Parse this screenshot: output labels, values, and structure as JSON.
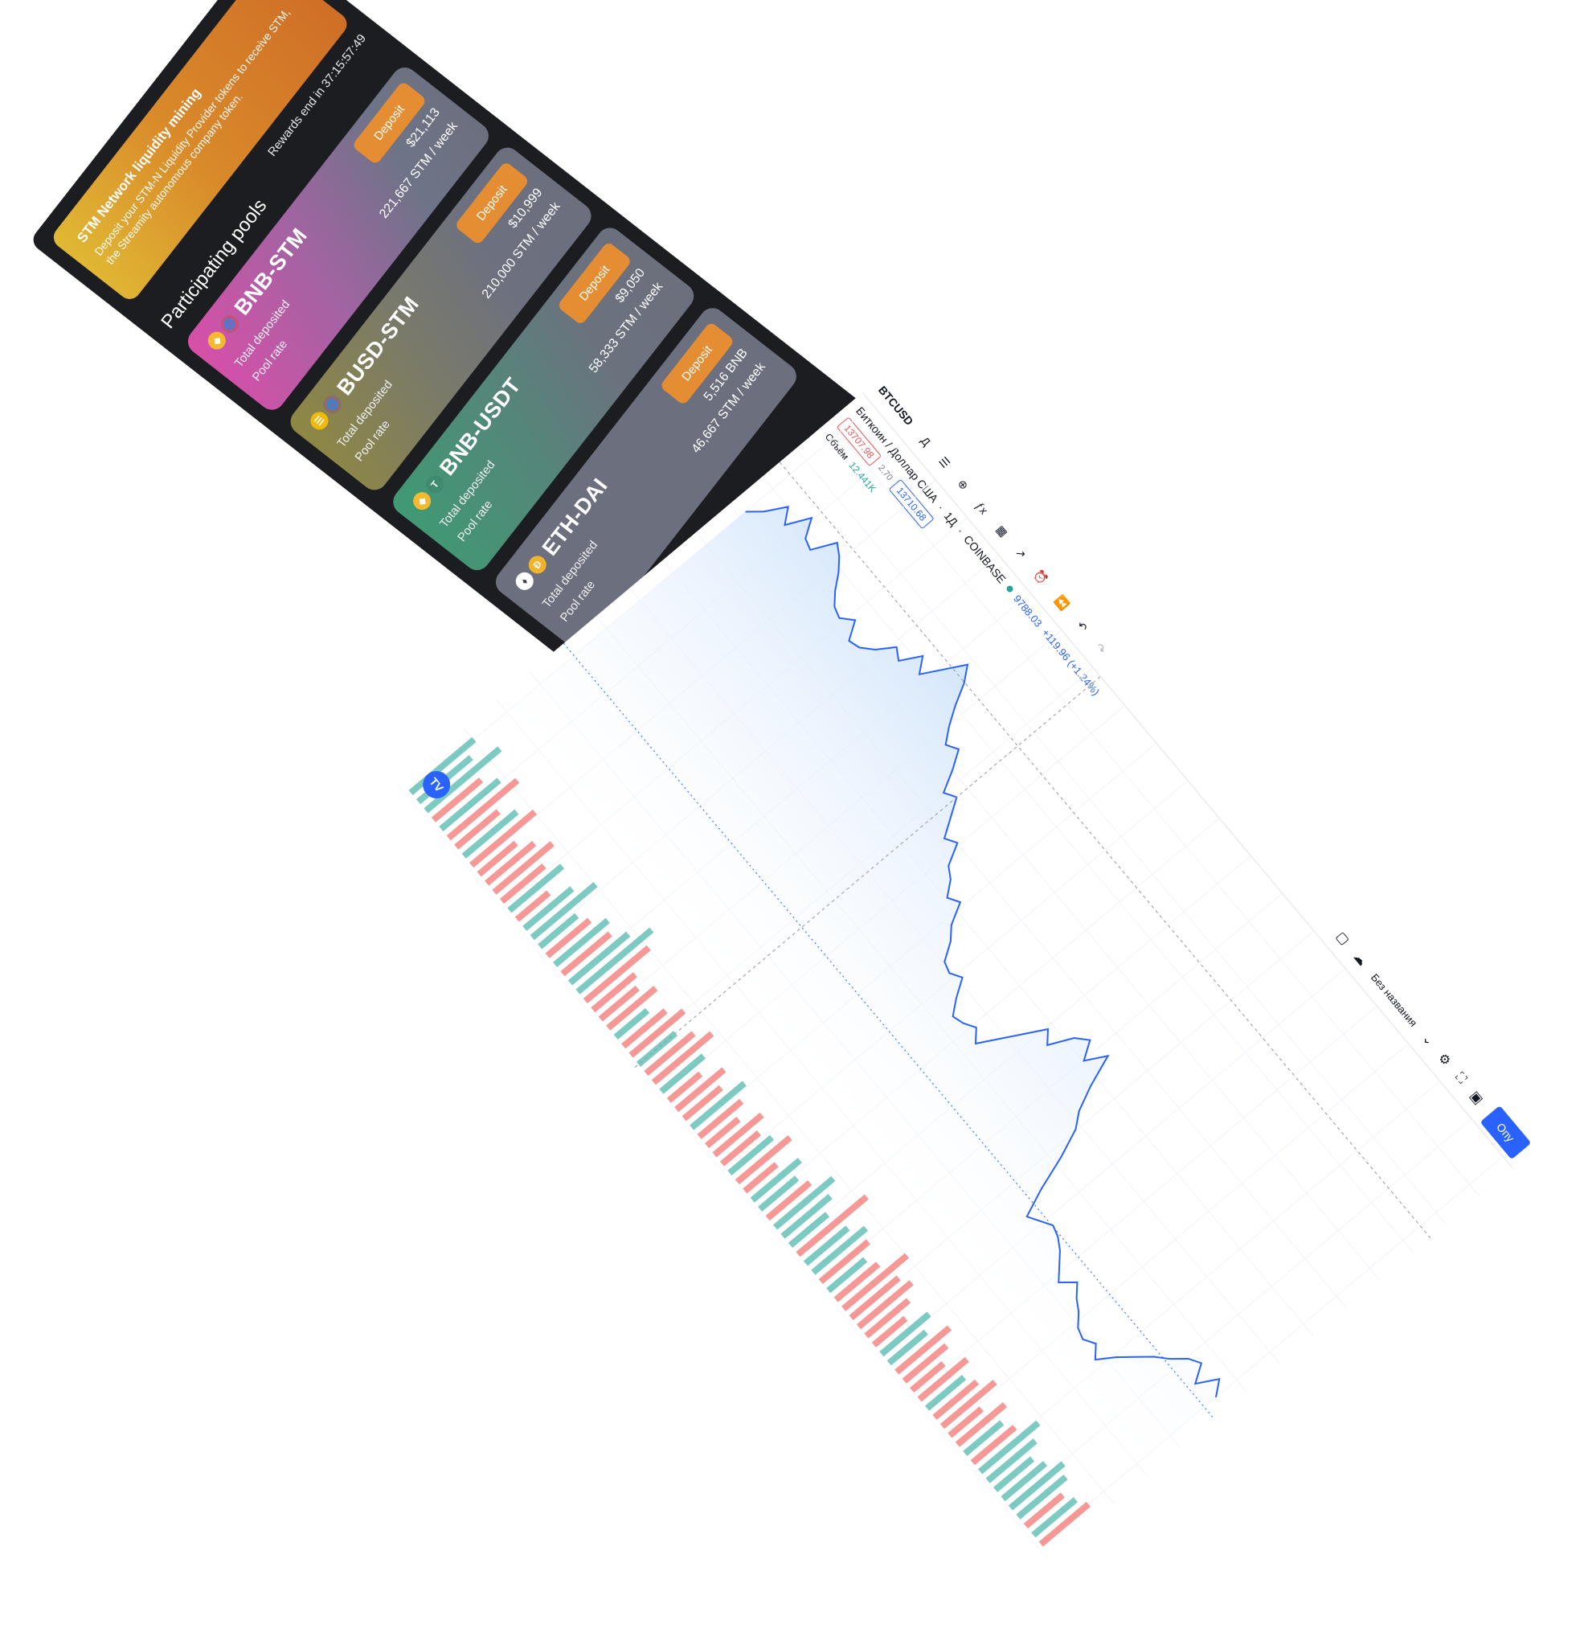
{
  "banner": {
    "title": "STM Network liquidity mining",
    "text": "Deposit your STM-N Liquidity Provider tokens to receive STM, the Streamity autonomous company token."
  },
  "rewards_text": "Rewards end in 37:15:57:49",
  "section_title": "Participating pools",
  "pools": [
    {
      "name": "BNB-STM",
      "total_label": "Total deposited",
      "rate_label": "Pool rate",
      "total_value": "$21,113",
      "rate_value": "221,667 STM / week",
      "button": "Deposit"
    },
    {
      "name": "BUSD-STM",
      "total_label": "Total deposited",
      "rate_label": "Pool rate",
      "total_value": "$10,999",
      "rate_value": "210,000 STM / week",
      "button": "Deposit"
    },
    {
      "name": "BNB-USDT",
      "total_label": "Total deposited",
      "rate_label": "Pool rate",
      "total_value": "$9,050",
      "rate_value": "58,333 STM / week",
      "button": "Deposit"
    },
    {
      "name": "ETH-DAI",
      "total_label": "Total deposited",
      "rate_label": "Pool rate",
      "total_value": "5,516 BNB",
      "rate_value": "46,667 STM / week",
      "button": "Deposit"
    }
  ],
  "chart_toolbar": {
    "symbol": "BTCUSD",
    "interval": "Д",
    "layout_name": "Без названия",
    "publish_label": "Опу"
  },
  "chart_legend": {
    "title": "Биткоин / Доллар США",
    "interval": "1Д",
    "exchange": "COINBASE",
    "price_bid": "13707.98",
    "spread": "2.70",
    "price_ask": "13710.68",
    "volume_label": "Объём",
    "volume_value": "12.441K",
    "price_line_label": "9788.03",
    "change_text": "+119.96 (+1.24%)"
  },
  "colors": {
    "line": "#2962ff",
    "area_top": "#cfe3fb",
    "vol_up": "#26a69a",
    "vol_down": "#ef5350",
    "deposit": "#e58d32"
  },
  "chart_data": {
    "type": "area",
    "title": "Биткоин / Доллар США",
    "series": [
      {
        "name": "BTCUSD close",
        "values": [
          12900,
          13100,
          13400,
          13200,
          13550,
          13300,
          13250,
          13600,
          13500,
          13350,
          13150,
          13000,
          12950,
          13100,
          12850,
          12900,
          13050,
          13300,
          13200,
          13500,
          13300,
          13600,
          13900,
          13700,
          13400,
          13150,
          12950,
          13050,
          12800,
          12500,
          12600,
          12350,
          12100,
          12200,
          11900,
          11800,
          11600,
          11700,
          11400,
          11250,
          11000,
          10950,
          11050,
          10800,
          10600,
          10650,
          10750,
          10600,
          10900,
          11200,
          11500,
          11350,
          11700,
          11850,
          11600,
          11900,
          11450,
          11100,
          10900,
          10500,
          10000,
          9600,
          9700,
          9800,
          9750,
          9650,
          9500,
          9350,
          9550,
          9400,
          9300,
          9150,
          9100,
          9200,
          9050,
          9300,
          9500,
          9700,
          9850,
          10050,
          10150,
          9900,
          10200,
          10000
        ]
      },
      {
        "name": "Объём",
        "values": [
          12,
          10,
          14,
          9,
          11,
          13,
          8,
          10,
          12,
          7,
          9,
          11,
          8,
          10,
          6,
          9,
          12,
          7,
          8,
          10,
          9,
          11,
          14,
          12,
          8,
          7,
          9,
          6,
          8,
          10,
          7,
          9,
          11,
          8,
          6,
          9,
          7,
          10,
          8,
          6,
          9,
          7,
          8,
          10,
          6,
          9,
          7,
          8,
          11,
          9,
          7,
          13,
          8,
          10,
          9,
          7,
          8,
          12,
          9,
          10,
          8,
          6,
          9,
          7,
          10,
          8,
          6,
          9,
          7,
          8,
          10,
          6,
          9,
          7,
          8,
          11,
          9,
          7,
          8,
          10,
          9,
          7,
          8,
          9
        ]
      }
    ],
    "ylim": [
      8500,
      14200
    ]
  }
}
